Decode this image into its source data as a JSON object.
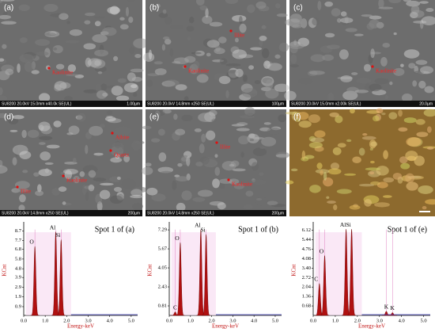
{
  "figure": {
    "panels": [
      {
        "label": "(a)",
        "info": "SU8200 20.0kV 15.0mm x40.0k SE(UL)",
        "scale": "1.00µm",
        "annotations": [
          "Kaolinite"
        ]
      },
      {
        "label": "(b)",
        "info": "SU8200 20.0kV 14.8mm x250 SE(UL)",
        "scale": "100µm",
        "annotations": [
          "Illite",
          "Kaolinite"
        ]
      },
      {
        "label": "(c)",
        "info": "SU8200 20.0kV 15.0mm x2.00k SE(UL)",
        "scale": "20.0µm",
        "annotations": [
          "Kaolinite"
        ]
      },
      {
        "label": "(d)",
        "info": "SU8200 20.0kV 14.8mm x250 SE(UL)",
        "scale": "200µm",
        "annotations": [
          "Albite",
          "Quartz",
          "Kaolinite",
          "Illite"
        ]
      },
      {
        "label": "(e)",
        "info": "SU8200 20.0kV 14.8mm x250 SE(UL)",
        "scale": "200µm",
        "annotations": [
          "Illite",
          "Kaolinite"
        ]
      },
      {
        "label": "(f)",
        "annotations": []
      }
    ]
  },
  "chart_data": [
    {
      "type": "spectrum",
      "title": "Spot 1 of (a)",
      "ylabel": "KCnt",
      "xlabel": "Energy-keV",
      "color": "#b01010",
      "xlim": [
        0,
        5.3
      ],
      "ylim": [
        0,
        9.3
      ],
      "xticks": [
        {
          "value": 0,
          "label": "0.0"
        },
        {
          "value": 1,
          "label": "1.0"
        },
        {
          "value": 2,
          "label": "2.0"
        },
        {
          "value": 3,
          "label": "3.0"
        },
        {
          "value": 4,
          "label": "4.0"
        },
        {
          "value": 5,
          "label": "5.0"
        }
      ],
      "yticks": [
        0.9,
        1.9,
        2.9,
        3.9,
        4.8,
        5.8,
        6.8,
        7.7,
        8.7
      ],
      "peaks": {
        "labels": [
          "O",
          "Al",
          "Si"
        ],
        "x": [
          0.52,
          1.49,
          1.74
        ],
        "values": [
          7.1,
          8.6,
          7.8
        ]
      }
    },
    {
      "type": "spectrum",
      "title": "Spot 1 of (b)",
      "ylabel": "KCnt",
      "xlabel": "Energy-keV",
      "color": "#b01010",
      "xlim": [
        0,
        5.3
      ],
      "ylim": [
        0,
        7.7
      ],
      "xticks": [
        {
          "value": 0,
          "label": "0.0"
        },
        {
          "value": 1,
          "label": "1.0"
        },
        {
          "value": 2,
          "label": "2.0"
        },
        {
          "value": 3,
          "label": "3.0"
        },
        {
          "value": 4,
          "label": "4.0"
        },
        {
          "value": 5,
          "label": "5.0"
        }
      ],
      "yticks": [
        0.81,
        2.43,
        4.05,
        5.67,
        7.29
      ],
      "peaks": {
        "labels": [
          "C",
          "O",
          "Al",
          "Si"
        ],
        "x": [
          0.28,
          0.52,
          1.49,
          1.74
        ],
        "values": [
          0.3,
          6.2,
          7.3,
          6.9
        ]
      }
    },
    {
      "type": "spectrum",
      "title": "Spot 1 of (e)",
      "ylabel": "KCnt",
      "xlabel": "Energy-keV",
      "color": "#b01010",
      "xlim": [
        0,
        5.3
      ],
      "ylim": [
        0,
        6.5
      ],
      "xticks": [
        {
          "value": 0,
          "label": "0.0"
        },
        {
          "value": 1,
          "label": "1.0"
        },
        {
          "value": 2,
          "label": "2.0"
        },
        {
          "value": 3,
          "label": "3.0"
        },
        {
          "value": 4,
          "label": "4.0"
        },
        {
          "value": 5,
          "label": "5.0"
        }
      ],
      "yticks": [
        0.68,
        1.36,
        2.04,
        2.72,
        {
          "value": 3.4,
          "label": "3.40"
        },
        4.08,
        4.76,
        5.44,
        6.12
      ],
      "peaks": {
        "labels": [
          "C",
          "O",
          "Al",
          "Si",
          "K",
          "K"
        ],
        "x": [
          0.28,
          0.52,
          1.49,
          1.74,
          3.31,
          3.59
        ],
        "values": [
          2.3,
          4.3,
          6.2,
          6.2,
          0.3,
          0.2
        ]
      }
    }
  ]
}
